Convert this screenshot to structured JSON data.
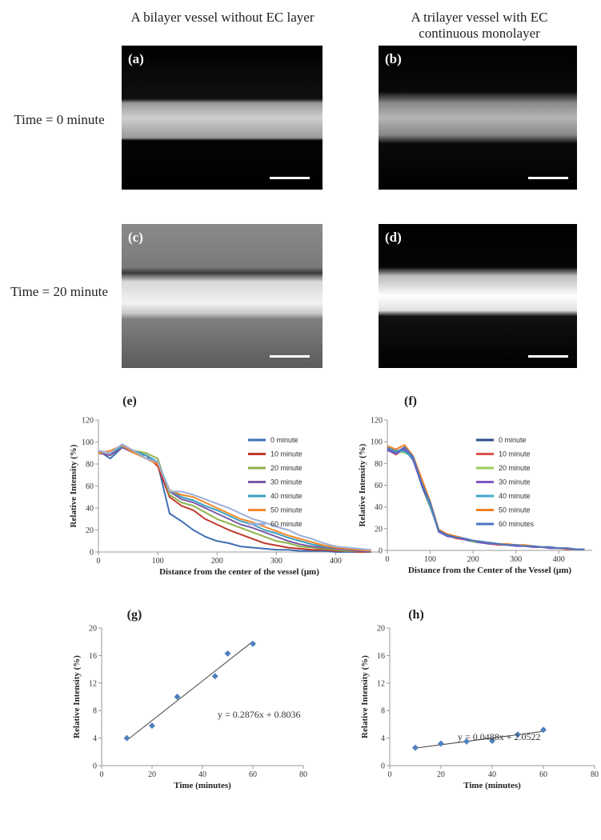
{
  "columns": [
    "A bilayer vessel without EC layer",
    "A trilayer vessel with EC continuous monolayer"
  ],
  "rows": [
    "Time = 0 minute",
    "Time = 20 minute"
  ],
  "image_labels": [
    "(a)",
    "(b)",
    "(c)",
    "(d)"
  ],
  "chart_data": [
    {
      "type": "line",
      "title": "(e)",
      "y_label": "Relative Intensity (%)",
      "x_label": "Distance  from  the center of the vessel (μm)",
      "x": [
        0,
        20,
        40,
        60,
        80,
        100,
        120,
        140,
        160,
        180,
        200,
        220,
        240,
        260,
        280,
        300,
        320,
        340,
        360,
        380,
        400,
        420,
        440,
        460
      ],
      "xlim": [
        0,
        475
      ],
      "xticks": [
        0,
        100,
        200,
        300,
        400
      ],
      "ylim": [
        0,
        120
      ],
      "yticks": [
        0,
        20,
        40,
        60,
        80,
        100,
        120
      ],
      "legend": "upper right",
      "series": [
        {
          "name": "0 minute",
          "color": "#3f6fb5",
          "values": [
            92,
            85,
            95,
            92,
            85,
            80,
            35,
            28,
            20,
            14,
            10,
            8,
            5,
            4,
            3,
            2,
            2,
            1,
            1,
            1,
            0,
            0,
            0,
            0
          ]
        },
        {
          "name": "10 minute",
          "color": "#c0392b",
          "values": [
            90,
            88,
            96,
            90,
            88,
            78,
            50,
            42,
            38,
            30,
            25,
            20,
            16,
            12,
            8,
            6,
            4,
            3,
            2,
            2,
            1,
            1,
            0,
            0
          ]
        },
        {
          "name": "20 minute",
          "color": "#8fb24a",
          "values": [
            92,
            90,
            95,
            92,
            90,
            85,
            52,
            45,
            42,
            36,
            30,
            26,
            22,
            18,
            14,
            10,
            8,
            5,
            4,
            3,
            2,
            1,
            1,
            0
          ]
        },
        {
          "name": "30 minute",
          "color": "#7b5aa6",
          "values": [
            90,
            88,
            95,
            90,
            88,
            80,
            55,
            48,
            45,
            40,
            35,
            30,
            25,
            22,
            18,
            14,
            10,
            7,
            5,
            4,
            3,
            2,
            1,
            0
          ]
        },
        {
          "name": "40 minute",
          "color": "#3aa0c0",
          "values": [
            92,
            90,
            96,
            92,
            88,
            82,
            56,
            50,
            47,
            42,
            38,
            33,
            28,
            25,
            20,
            17,
            13,
            10,
            7,
            5,
            4,
            3,
            2,
            1
          ]
        },
        {
          "name": "50 minute",
          "color": "#f5882a",
          "values": [
            90,
            92,
            97,
            90,
            85,
            80,
            56,
            52,
            50,
            45,
            40,
            35,
            30,
            27,
            23,
            19,
            15,
            12,
            9,
            6,
            4,
            3,
            2,
            1
          ]
        },
        {
          "name": "60 minute",
          "color": "#9bb0d9",
          "values": [
            92,
            90,
            98,
            92,
            85,
            82,
            55,
            55,
            52,
            48,
            44,
            40,
            35,
            30,
            27,
            23,
            20,
            15,
            12,
            8,
            5,
            4,
            3,
            2
          ]
        }
      ]
    },
    {
      "type": "line",
      "title": "(f)",
      "y_label": "Relative Intensity (%)",
      "x_label": "Distance from the Center of the Vessel (μm)",
      "x": [
        0,
        20,
        40,
        60,
        80,
        100,
        120,
        140,
        160,
        180,
        200,
        220,
        240,
        260,
        280,
        300,
        320,
        340,
        360,
        380,
        400,
        420,
        440,
        460
      ],
      "xlim": [
        0,
        478
      ],
      "xticks": [
        0,
        100,
        200,
        300,
        400
      ],
      "ylim": [
        0,
        120
      ],
      "yticks": [
        0,
        20,
        40,
        60,
        80,
        100,
        120
      ],
      "legend": "upper right",
      "series": [
        {
          "name": "0 minute",
          "color": "#2c4d8a",
          "values": [
            95,
            90,
            92,
            85,
            60,
            40,
            18,
            13,
            12,
            10,
            8,
            7,
            6,
            6,
            5,
            5,
            4,
            4,
            3,
            3,
            2,
            2,
            1,
            1
          ]
        },
        {
          "name": "10 minute",
          "color": "#d9534f",
          "values": [
            93,
            88,
            94,
            84,
            62,
            42,
            17,
            14,
            11,
            10,
            9,
            7,
            6,
            5,
            5,
            4,
            4,
            3,
            3,
            2,
            2,
            1,
            1,
            1
          ]
        },
        {
          "name": "20 minute",
          "color": "#9acd5a",
          "values": [
            94,
            91,
            90,
            86,
            63,
            41,
            18,
            15,
            12,
            11,
            8,
            8,
            7,
            6,
            5,
            5,
            4,
            4,
            3,
            3,
            2,
            2,
            1,
            1
          ]
        },
        {
          "name": "30 minute",
          "color": "#7e57c2",
          "values": [
            92,
            89,
            93,
            83,
            61,
            43,
            17,
            13,
            12,
            10,
            9,
            7,
            6,
            6,
            5,
            4,
            4,
            3,
            3,
            2,
            2,
            2,
            1,
            1
          ]
        },
        {
          "name": "40 minute",
          "color": "#3fa7c9",
          "values": [
            95,
            92,
            91,
            85,
            64,
            42,
            18,
            14,
            13,
            11,
            9,
            8,
            7,
            6,
            5,
            5,
            4,
            4,
            3,
            3,
            2,
            2,
            1,
            1
          ]
        },
        {
          "name": "50 minute",
          "color": "#f07f21",
          "values": [
            96,
            93,
            97,
            87,
            66,
            45,
            19,
            15,
            13,
            11,
            9,
            8,
            7,
            6,
            6,
            5,
            5,
            4,
            3,
            3,
            2,
            2,
            1,
            1
          ]
        },
        {
          "name": "60 minutes",
          "color": "#4a76c4",
          "values": [
            94,
            90,
            95,
            86,
            62,
            44,
            18,
            14,
            12,
            11,
            9,
            8,
            7,
            6,
            5,
            5,
            4,
            4,
            3,
            3,
            2,
            2,
            1,
            1
          ]
        }
      ]
    },
    {
      "type": "scatter",
      "title": "(g)",
      "y_label": "Relative Intensity (%)",
      "x_label": "Time (minutes)",
      "color": "#4f81bd",
      "x": [
        10,
        20,
        30,
        45,
        50,
        60
      ],
      "values": [
        4,
        5.8,
        10,
        13,
        16.3,
        17.7
      ],
      "trendline": {
        "x": [
          10,
          60
        ],
        "values": [
          3.68,
          18.06
        ]
      },
      "annotation": "y = 0.2876x + 0.8036",
      "xlim": [
        0,
        80
      ],
      "xticks": [
        0,
        20,
        40,
        60,
        80
      ],
      "ylim": [
        0,
        20
      ],
      "yticks": [
        0,
        4,
        8,
        12,
        16,
        20
      ]
    },
    {
      "type": "scatter",
      "title": "(h)",
      "y_label": "Relative Intensity (%)",
      "x_label": "Time (minutes)",
      "color": "#4f81bd",
      "x": [
        10,
        20,
        30,
        40,
        50,
        60
      ],
      "values": [
        2.6,
        3.2,
        3.5,
        3.6,
        4.5,
        5.2
      ],
      "trendline": {
        "x": [
          10,
          60
        ],
        "values": [
          2.54,
          4.98
        ]
      },
      "annotation": "y = 0.0488x + 2.0522",
      "xlim": [
        0,
        80
      ],
      "xticks": [
        0,
        20,
        40,
        60,
        80
      ],
      "ylim": [
        0,
        20
      ],
      "yticks": [
        0,
        4,
        8,
        12,
        16,
        20
      ]
    }
  ]
}
